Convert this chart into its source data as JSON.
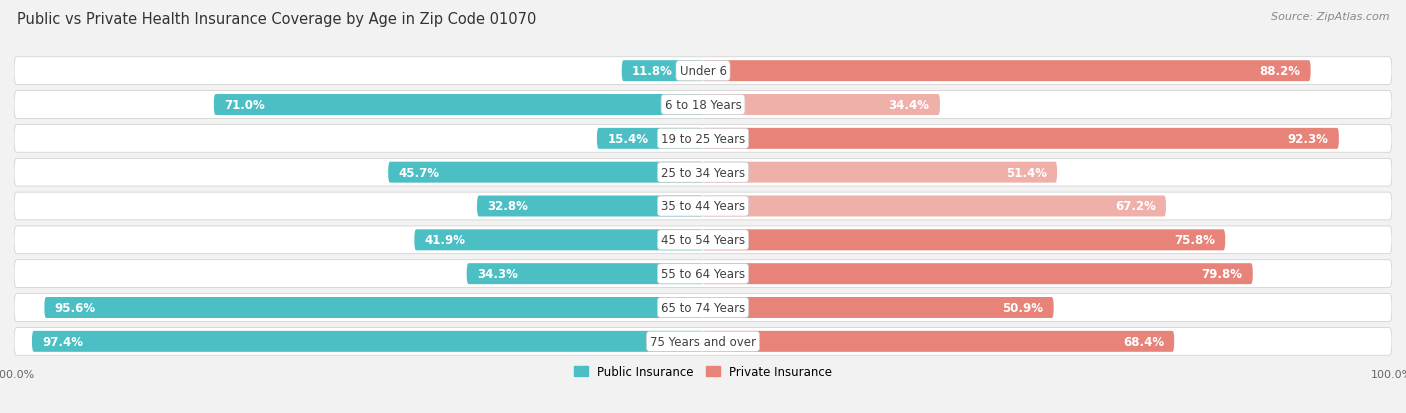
{
  "title": "Public vs Private Health Insurance Coverage by Age in Zip Code 01070",
  "source": "Source: ZipAtlas.com",
  "categories": [
    "Under 6",
    "6 to 18 Years",
    "19 to 25 Years",
    "25 to 34 Years",
    "35 to 44 Years",
    "45 to 54 Years",
    "55 to 64 Years",
    "65 to 74 Years",
    "75 Years and over"
  ],
  "public_values": [
    11.8,
    71.0,
    15.4,
    45.7,
    32.8,
    41.9,
    34.3,
    95.6,
    97.4
  ],
  "private_values": [
    88.2,
    34.4,
    92.3,
    51.4,
    67.2,
    75.8,
    79.8,
    50.9,
    68.4
  ],
  "public_color": "#4bbfc4",
  "private_color": "#e8837a",
  "private_light_color": "#f0b0aa",
  "bg_color": "#f2f2f2",
  "row_bg_color": "#e8e8e8",
  "bar_track_color": "#e0e0e0",
  "title_fontsize": 10.5,
  "label_fontsize": 8.5,
  "value_fontsize": 8.5,
  "tick_fontsize": 8,
  "source_fontsize": 8,
  "x_only_100": true
}
